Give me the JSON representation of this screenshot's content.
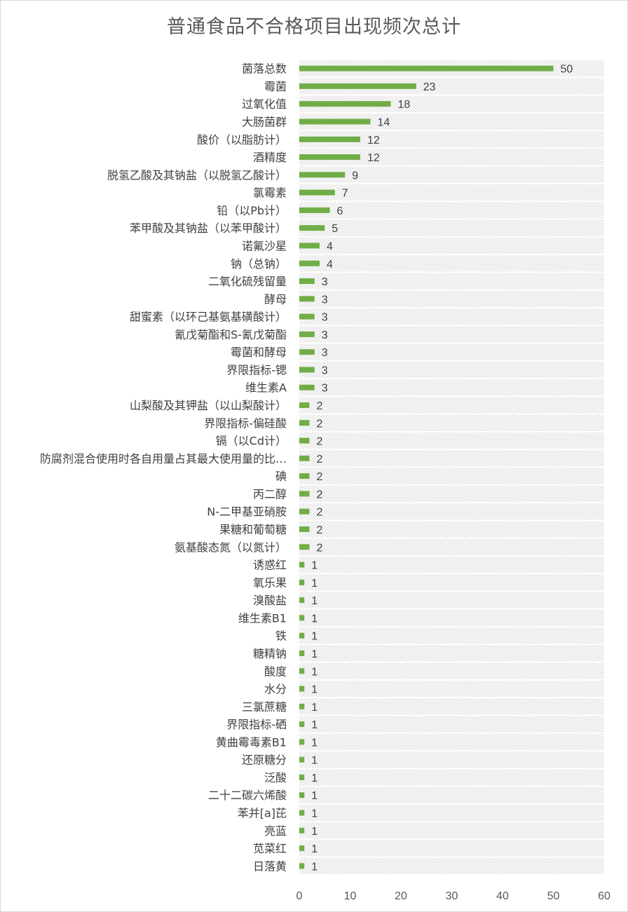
{
  "chart_data": {
    "type": "bar",
    "orientation": "horizontal",
    "title": "普通食品不合格项目出现频次总计",
    "categories": [
      "菌落总数",
      "霉菌",
      "过氧化值",
      "大肠菌群",
      "酸价（以脂肪计）",
      "酒精度",
      "脱氢乙酸及其钠盐（以脱氢乙酸计）",
      "氯霉素",
      "铅（以Pb计）",
      "苯甲酸及其钠盐（以苯甲酸计）",
      "诺氟沙星",
      "钠（总钠）",
      "二氧化硫残留量",
      "酵母",
      "甜蜜素（以环己基氨基磺酸计）",
      "氰戊菊酯和S-氰戊菊酯",
      "霉菌和酵母",
      "界限指标-锶",
      "维生素A",
      "山梨酸及其钾盐（以山梨酸计）",
      "界限指标-偏硅酸",
      "镉（以Cd计）",
      "防腐剂混合使用时各自用量占其最大使用量的比…",
      "碘",
      "丙二醇",
      "N-二甲基亚硝胺",
      "果糖和葡萄糖",
      "氨基酸态氮（以氮计）",
      "诱惑红",
      "氧乐果",
      "溴酸盐",
      "维生素B1",
      "铁",
      "糖精钠",
      "酸度",
      "水分",
      "三氯蔗糖",
      "界限指标-硒",
      "黄曲霉毒素B1",
      "还原糖分",
      "泛酸",
      "二十二碳六烯酸",
      "苯并[a]芘",
      "亮蓝",
      "苋菜红",
      "日落黄"
    ],
    "values": [
      50,
      23,
      18,
      14,
      12,
      12,
      9,
      7,
      6,
      5,
      4,
      4,
      3,
      3,
      3,
      3,
      3,
      3,
      3,
      2,
      2,
      2,
      2,
      2,
      2,
      2,
      2,
      2,
      1,
      1,
      1,
      1,
      1,
      1,
      1,
      1,
      1,
      1,
      1,
      1,
      1,
      1,
      1,
      1,
      1,
      1
    ],
    "xlim": [
      0,
      60
    ],
    "xticks": [
      "0",
      "10",
      "20",
      "30",
      "40",
      "50",
      "60"
    ],
    "data_labels": true,
    "legend": "none",
    "colors": {
      "bar": "#70ad47",
      "plot_area_pattern": "#d9d9d9",
      "text": "#404040"
    }
  }
}
